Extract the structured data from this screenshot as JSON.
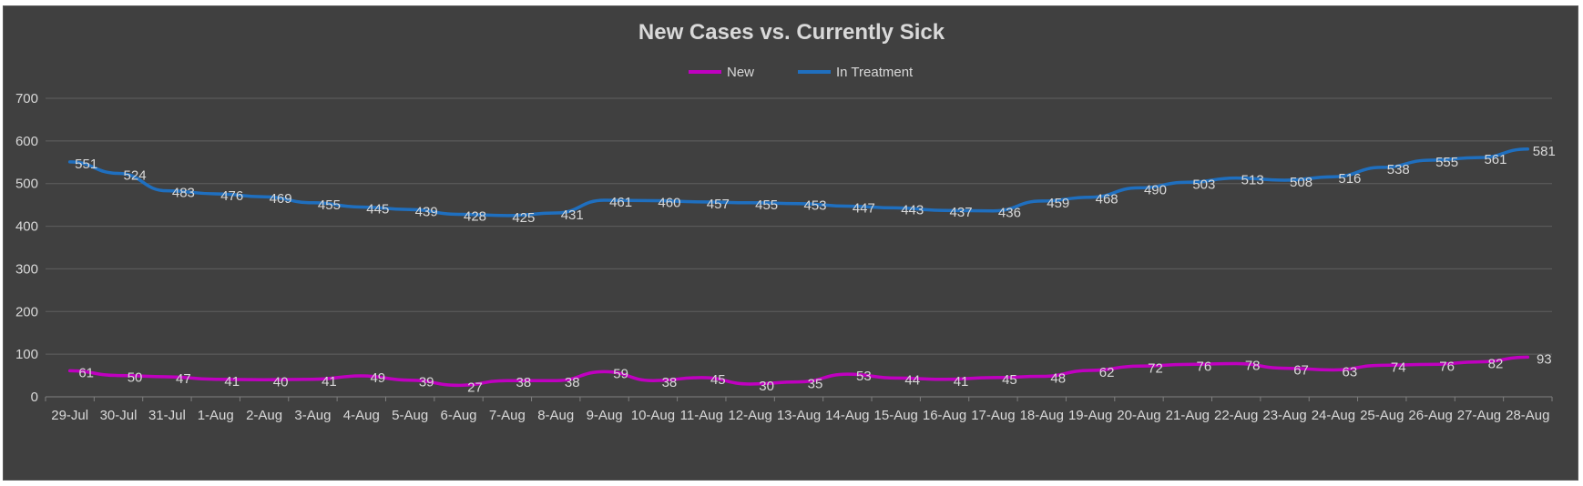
{
  "chart_data": {
    "type": "line",
    "title": "New Cases vs. Currently Sick",
    "xlabel": "",
    "ylabel": "",
    "ylim": [
      0,
      700
    ],
    "yticks": [
      0,
      100,
      200,
      300,
      400,
      500,
      600,
      700
    ],
    "grid": true,
    "legend_position": "top",
    "categories": [
      "29-Jul",
      "30-Jul",
      "31-Jul",
      "1-Aug",
      "2-Aug",
      "3-Aug",
      "4-Aug",
      "5-Aug",
      "6-Aug",
      "7-Aug",
      "8-Aug",
      "9-Aug",
      "10-Aug",
      "11-Aug",
      "12-Aug",
      "13-Aug",
      "14-Aug",
      "15-Aug",
      "16-Aug",
      "17-Aug",
      "18-Aug",
      "19-Aug",
      "20-Aug",
      "21-Aug",
      "22-Aug",
      "23-Aug",
      "24-Aug",
      "25-Aug",
      "26-Aug",
      "27-Aug",
      "28-Aug"
    ],
    "series": [
      {
        "name": "New",
        "color": "#c000c0",
        "values": [
          61,
          50,
          47,
          41,
          40,
          41,
          49,
          39,
          27,
          38,
          38,
          59,
          38,
          45,
          30,
          35,
          53,
          44,
          41,
          45,
          48,
          62,
          72,
          76,
          78,
          67,
          63,
          74,
          76,
          82,
          93
        ]
      },
      {
        "name": "In Treatment",
        "color": "#1f6fbf",
        "values": [
          551,
          524,
          483,
          476,
          469,
          455,
          445,
          439,
          428,
          425,
          431,
          461,
          460,
          457,
          455,
          453,
          447,
          443,
          437,
          436,
          459,
          468,
          490,
          503,
          513,
          508,
          516,
          538,
          555,
          561,
          581
        ]
      }
    ]
  },
  "colors": {
    "background": "#404040",
    "text": "#d9d9d9",
    "gridline": "#5f5f5f"
  }
}
